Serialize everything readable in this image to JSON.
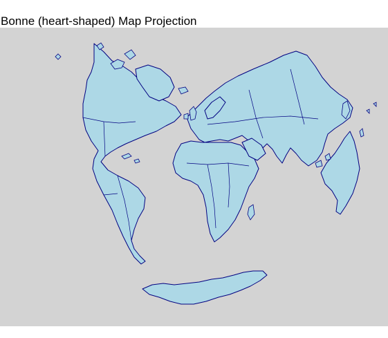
{
  "title": "Bonne (heart-shaped) Map Projection",
  "colors": {
    "panel": "#d3d3d3",
    "land": "#add8e6",
    "outline": "#000080"
  }
}
